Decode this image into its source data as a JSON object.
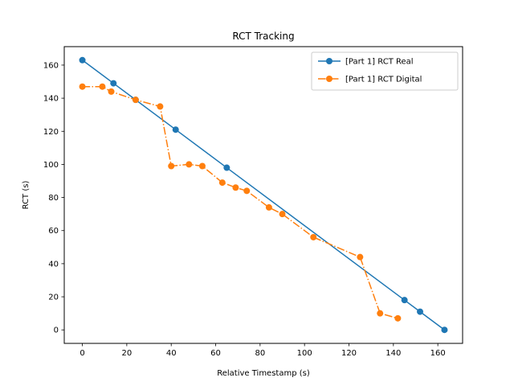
{
  "chart_data": {
    "type": "line",
    "title": "RCT Tracking",
    "xlabel": "Relative Timestamp (s)",
    "ylabel": "RCT (s)",
    "xlim": [
      -8.15,
      171.15
    ],
    "ylim": [
      -8.15,
      171.15
    ],
    "xticks": [
      0,
      20,
      40,
      60,
      80,
      100,
      120,
      140,
      160
    ],
    "yticks": [
      0,
      20,
      40,
      60,
      80,
      100,
      120,
      140,
      160
    ],
    "grid": false,
    "legend_position": "top-right",
    "series": [
      {
        "name": "[Part 1] RCT Real",
        "color": "#1f77b4",
        "line_style": "solid",
        "marker": "circle",
        "points": [
          [
            0,
            163
          ],
          [
            14,
            149
          ],
          [
            24,
            139
          ],
          [
            42,
            121
          ],
          [
            65,
            98
          ],
          [
            145,
            18
          ],
          [
            152,
            11
          ],
          [
            163,
            0
          ]
        ]
      },
      {
        "name": "[Part 1] RCT Digital",
        "color": "#ff7f0e",
        "line_style": "dashdot",
        "marker": "circle",
        "points": [
          [
            0,
            147
          ],
          [
            9,
            147
          ],
          [
            13,
            144
          ],
          [
            24,
            139
          ],
          [
            35,
            135
          ],
          [
            40,
            99
          ],
          [
            48,
            100
          ],
          [
            54,
            99
          ],
          [
            63,
            89
          ],
          [
            69,
            86
          ],
          [
            74,
            84
          ],
          [
            84,
            74
          ],
          [
            90,
            70
          ],
          [
            104,
            56
          ],
          [
            125,
            44
          ],
          [
            134,
            10
          ],
          [
            142,
            7
          ]
        ]
      }
    ]
  }
}
